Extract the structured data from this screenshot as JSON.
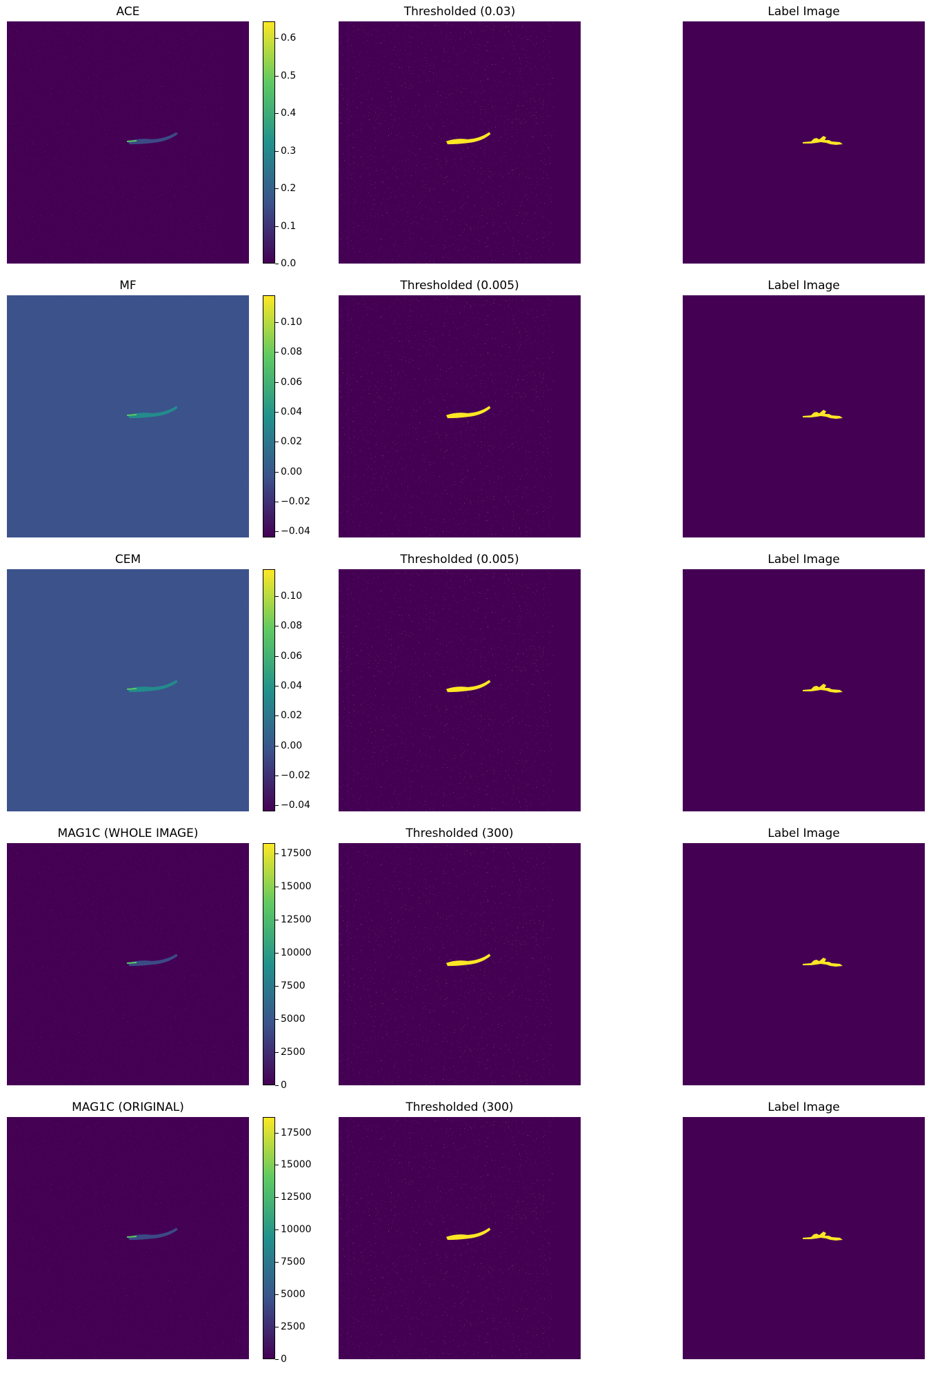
{
  "colors": {
    "viridis_low": "#440154",
    "viridis_mid_low": "#3b528b",
    "viridis_mid": "#21918c",
    "viridis_mid_high": "#5ec962",
    "viridis_high": "#fde725"
  },
  "rows": [
    {
      "score_title": "ACE",
      "threshold_title": "Thresholded (0.03)",
      "label_title": "Label Image",
      "colorbar_ticks": [
        "0.0",
        "0.1",
        "0.2",
        "0.3",
        "0.4",
        "0.5",
        "0.6"
      ],
      "colorbar_range": [
        0.0,
        0.645
      ]
    },
    {
      "score_title": "MF",
      "threshold_title": "Thresholded (0.005)",
      "label_title": "Label Image",
      "colorbar_ticks": [
        "−0.04",
        "−0.02",
        "0.00",
        "0.02",
        "0.04",
        "0.06",
        "0.08",
        "0.10"
      ],
      "colorbar_range": [
        -0.044,
        0.118
      ]
    },
    {
      "score_title": "CEM",
      "threshold_title": "Thresholded (0.005)",
      "label_title": "Label Image",
      "colorbar_ticks": [
        "−0.04",
        "−0.02",
        "0.00",
        "0.02",
        "0.04",
        "0.06",
        "0.08",
        "0.10"
      ],
      "colorbar_range": [
        -0.044,
        0.118
      ]
    },
    {
      "score_title": "MAG1C (WHOLE IMAGE)",
      "threshold_title": "Thresholded (300)",
      "label_title": "Label Image",
      "colorbar_ticks": [
        "0",
        "2500",
        "5000",
        "7500",
        "10000",
        "12500",
        "15000",
        "17500"
      ],
      "colorbar_range": [
        0,
        18300
      ]
    },
    {
      "score_title": "MAG1C (ORIGINAL)",
      "threshold_title": "Thresholded (300)",
      "label_title": "Label Image",
      "colorbar_ticks": [
        "0",
        "2500",
        "5000",
        "7500",
        "10000",
        "12500",
        "15000",
        "17500"
      ],
      "colorbar_range": [
        0,
        18700
      ]
    }
  ]
}
